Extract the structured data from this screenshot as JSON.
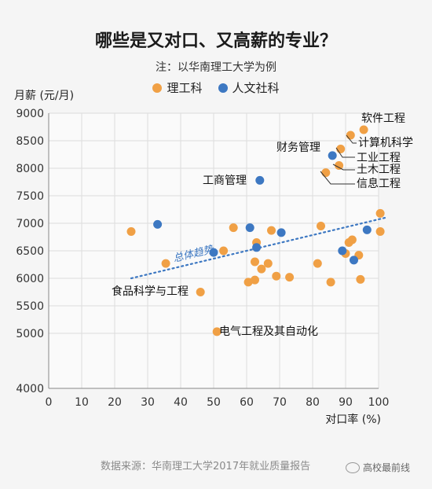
{
  "title": "哪些是又对口、又高薪的专业？",
  "subtitle": "注：以华南理工大学为例",
  "legend": [
    {
      "label": "理工科",
      "color": "#f0a045"
    },
    {
      "label": "人文社科",
      "color": "#3d78c2"
    }
  ],
  "source": "数据来源：华南理工大学2017年就业质量报告",
  "watermark": "高校最前线",
  "chart_data": {
    "type": "scatter",
    "xlabel": "对口率 (%)",
    "ylabel": "月薪 (元/月)",
    "xlim": [
      0,
      100
    ],
    "ylim": [
      4000,
      9000
    ],
    "xticks": [
      0,
      10,
      20,
      30,
      40,
      50,
      60,
      70,
      80,
      90,
      100
    ],
    "yticks": [
      4000,
      5000,
      5500,
      6000,
      6500,
      7000,
      7500,
      8000,
      8500,
      9000
    ],
    "grid": true,
    "legend_position": "top",
    "series": [
      {
        "name": "理工科",
        "color": "#f0a045",
        "points": [
          [
            25,
            6850
          ],
          [
            35.5,
            6270
          ],
          [
            46,
            5750
          ],
          [
            51,
            5030
          ],
          [
            53,
            6500
          ],
          [
            56,
            6920
          ],
          [
            60.5,
            5930
          ],
          [
            62.5,
            5970
          ],
          [
            62.5,
            6300
          ],
          [
            63,
            6650
          ],
          [
            64.5,
            6170
          ],
          [
            66.5,
            6270
          ],
          [
            67.5,
            6870
          ],
          [
            69,
            6040
          ],
          [
            73,
            6020
          ],
          [
            81.5,
            6270
          ],
          [
            82.5,
            6950
          ],
          [
            85.5,
            5930
          ],
          [
            90,
            6450
          ],
          [
            91,
            6650
          ],
          [
            92,
            6700
          ],
          [
            94,
            6420
          ],
          [
            94.5,
            5980
          ],
          [
            100.5,
            7180
          ],
          [
            100.5,
            6850
          ],
          [
            95.5,
            8700
          ],
          [
            91.5,
            8600
          ],
          [
            88.5,
            8350
          ],
          [
            88,
            8050
          ],
          [
            84,
            7920
          ]
        ]
      },
      {
        "name": "人文社科",
        "color": "#3d78c2",
        "points": [
          [
            33,
            6980
          ],
          [
            50,
            6470
          ],
          [
            61,
            6920
          ],
          [
            63,
            6560
          ],
          [
            70.5,
            6830
          ],
          [
            89,
            6500
          ],
          [
            92.5,
            6330
          ],
          [
            96.5,
            6880
          ],
          [
            86,
            8230
          ],
          [
            64,
            7780
          ]
        ]
      }
    ],
    "annotations": [
      {
        "text": "软件工程",
        "x": 95.5,
        "y": 8700
      },
      {
        "text": "计算机科学",
        "x": 91.5,
        "y": 8600
      },
      {
        "text": "工业工程",
        "x": 88.5,
        "y": 8350
      },
      {
        "text": "土木工程",
        "x": 88,
        "y": 8050
      },
      {
        "text": "信息工程",
        "x": 84,
        "y": 7920
      },
      {
        "text": "财务管理",
        "x": 86,
        "y": 8230
      },
      {
        "text": "工商管理",
        "x": 64,
        "y": 7780
      },
      {
        "text": "食品科学与工程",
        "x": 46,
        "y": 5750
      },
      {
        "text": "电气工程及其自动化",
        "x": 51,
        "y": 5030
      }
    ],
    "trend": {
      "label": "总体趋势",
      "start": [
        25,
        6000
      ],
      "end": [
        102,
        7100
      ]
    }
  }
}
